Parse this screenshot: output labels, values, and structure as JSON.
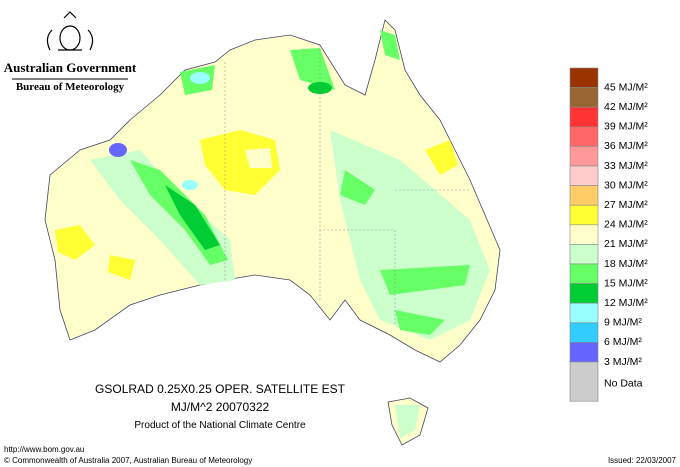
{
  "header": {
    "government": "Australian Government",
    "bureau": "Bureau of Meteorology"
  },
  "legend": [
    {
      "label": "45 MJ/M²",
      "color": "#993300"
    },
    {
      "label": "42 MJ/M²",
      "color": "#996633"
    },
    {
      "label": "39 MJ/M²",
      "color": "#ff3333"
    },
    {
      "label": "36 MJ/M²",
      "color": "#ff6666"
    },
    {
      "label": "33 MJ/M²",
      "color": "#ff9999"
    },
    {
      "label": "30 MJ/M²",
      "color": "#ffcccc"
    },
    {
      "label": "27 MJ/M²",
      "color": "#ffcc66"
    },
    {
      "label": "24 MJ/M²",
      "color": "#ffff33"
    },
    {
      "label": "21 MJ/M²",
      "color": "#ffffcc"
    },
    {
      "label": "18 MJ/M²",
      "color": "#ccffcc"
    },
    {
      "label": "15 MJ/M²",
      "color": "#66ff66"
    },
    {
      "label": "12 MJ/M²",
      "color": "#00cc33"
    },
    {
      "label": "9 MJ/M²",
      "color": "#99ffff"
    },
    {
      "label": "6 MJ/M²",
      "color": "#33ccff"
    },
    {
      "label": "3 MJ/M²",
      "color": "#6666ff"
    },
    {
      "label": "No Data",
      "color": "#cccccc"
    }
  ],
  "map_caption": {
    "line1": "GSOLRAD    0.25X0.25 OPER. SATELLITE EST",
    "line2": "MJ/M^2  20070322",
    "line3": "Product of the National Climate Centre"
  },
  "footer": {
    "url": "http://www.bom.gov.au",
    "copyright": "© Commonwealth of Australia 2007, Australian Bureau of Meteorology",
    "issued": "Issued: 22/03/2007"
  }
}
